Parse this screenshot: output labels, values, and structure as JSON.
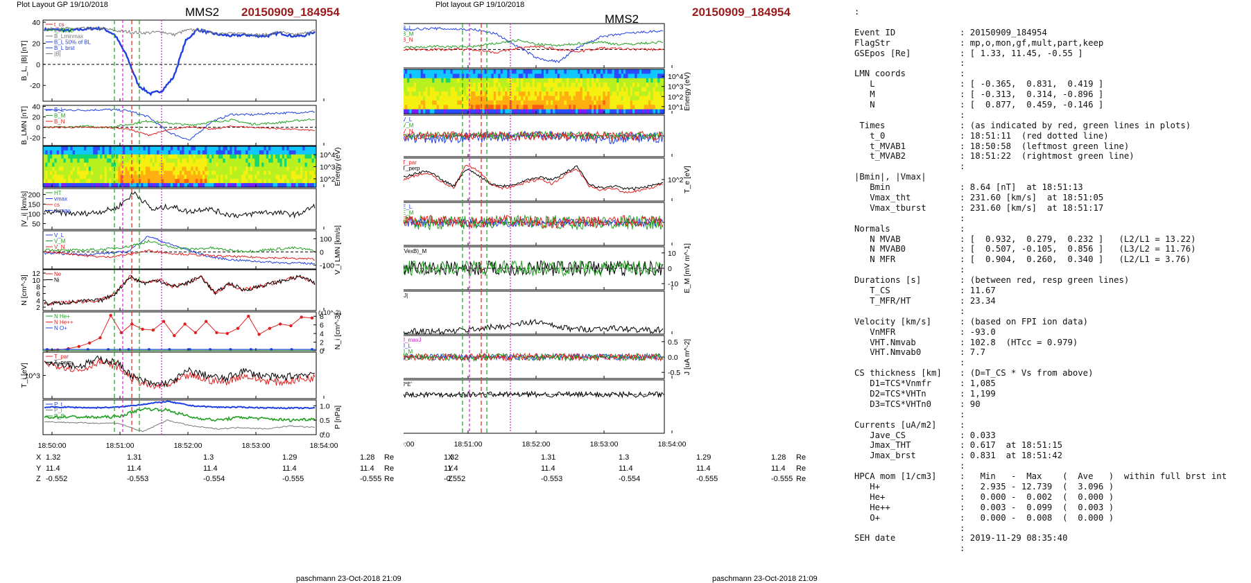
{
  "header": {
    "left_plot_layout": "Plot Layout GP 19/10/2018",
    "middle_plot_layout": "Plot layout GP 19/10/2018",
    "spacecraft": "MMS2",
    "event_id": "20150909_184954"
  },
  "footer": {
    "credit": "paschmann 23-Oct-2018 21:09"
  },
  "time_axis": {
    "ticks": [
      "18:50:00",
      "18:51:00",
      "18:52:00",
      "18:53:00",
      "18:54:00"
    ]
  },
  "coords": {
    "rows": [
      {
        "label": "X",
        "values": [
          "1.32",
          "1.31",
          "1.3",
          "1.29",
          "1.28"
        ],
        "unit": "Re"
      },
      {
        "label": "Y",
        "values": [
          "11.4",
          "11.4",
          "11.4",
          "11.4",
          "11.4"
        ],
        "unit": "Re"
      },
      {
        "label": "Z",
        "values": [
          "-0.552",
          "-0.553",
          "-0.554",
          "-0.555",
          "-0.555"
        ],
        "unit": "Re"
      }
    ]
  },
  "colors": {
    "red_line": "#e02020",
    "green_line": "#20a020",
    "magenta_line": "#d020d0",
    "blue": "#1f3fe0",
    "black": "#000000",
    "event_red": "#9b1b1b"
  },
  "chart_data": [
    {
      "type": "line",
      "panel": "left-1",
      "ylabel": "B_L, |B| [nT]",
      "ylim": [
        -35,
        42
      ],
      "yticks": [
        "40",
        "20",
        "0",
        "-20"
      ],
      "legend": [
        "t_cs",
        "t_MVAB",
        "B_Lminmax",
        "B_L 50% of BL",
        "B_L brst",
        "|B|"
      ],
      "series": [
        {
          "name": "B_L brst",
          "values": [
            33,
            33,
            32,
            33,
            34,
            34,
            28,
            8,
            -20,
            -28,
            -25,
            -12,
            22,
            33,
            30,
            28,
            27,
            28,
            27,
            27,
            30,
            27,
            27,
            31
          ]
        },
        {
          "name": "|B|",
          "values": [
            34,
            33,
            34,
            34,
            34,
            34,
            32,
            31,
            30,
            30,
            31,
            28,
            32,
            33,
            31,
            29,
            29,
            30,
            28,
            28,
            31,
            28,
            29,
            32
          ]
        }
      ]
    },
    {
      "type": "line",
      "panel": "left-2",
      "ylabel": "B_LMN [nT]",
      "ylim": [
        -35,
        42
      ],
      "yticks": [
        "40",
        "20",
        "0",
        "-20"
      ],
      "legend": [
        "B_L",
        "B_M",
        "B_N"
      ]
    },
    {
      "type": "heatmap",
      "panel": "left-3",
      "ylabel": "Energy (eV)",
      "yticks": [
        "10^4",
        "10^3",
        "10^2"
      ]
    },
    {
      "type": "line",
      "panel": "left-4",
      "ylabel": "|V_i| [km/s]",
      "ylim": [
        20,
        230
      ],
      "yticks": [
        "200",
        "150",
        "100",
        "50"
      ],
      "legend": [
        "HT",
        "vmax",
        "cs",
        "dvmax"
      ]
    },
    {
      "type": "line",
      "panel": "left-5",
      "ylabel": "V_i LMN [km/s]",
      "ylim": [
        -130,
        160
      ],
      "yticks": [
        "100",
        "0",
        "-100"
      ],
      "legend": [
        "V_L",
        "V_M",
        "V_N"
      ]
    },
    {
      "type": "line",
      "panel": "left-6",
      "ylabel": "N [cm^-3]",
      "ylim": [
        1,
        13
      ],
      "yticks": [
        "12",
        "10",
        "8",
        "6",
        "4",
        "2"
      ],
      "legend": [
        "Ne",
        "Ni"
      ]
    },
    {
      "type": "line",
      "panel": "left-7",
      "ylabel": "N_i [cm^-3]",
      "ylim": [
        0,
        9
      ],
      "yticks": [
        "8",
        "6",
        "4",
        "2",
        "0"
      ],
      "scale_note": "(x10^-2)",
      "legend": [
        "N He+",
        "N He++",
        "N O+"
      ],
      "series": [
        {
          "name": "N He++",
          "values": [
            0.1,
            0.2,
            0.5,
            1.0,
            1.8,
            3.0,
            8.2,
            4.2,
            6.2,
            5.0,
            4.8,
            6.8,
            3.5,
            6.2,
            4.2,
            6.8,
            4.2,
            4.0,
            5.2,
            8.0,
            3.8,
            5.2,
            6.2,
            5.8,
            7.8,
            7.6
          ]
        }
      ]
    },
    {
      "type": "line",
      "panel": "left-8",
      "ylabel": "T_i [eV]",
      "yticks": [
        "10^3"
      ],
      "legend": [
        "T_par",
        "T_perp"
      ]
    },
    {
      "type": "line",
      "panel": "left-9",
      "ylabel": "P [nPa]",
      "ylim": [
        0,
        1.2
      ],
      "yticks": [
        "1.0",
        "0.5",
        "0.0"
      ],
      "legend": [
        "P_t",
        "P_i",
        "P_B"
      ]
    },
    {
      "type": "line",
      "panel": "mid-1",
      "ylabel": "B_LMN [nT]",
      "ylim": [
        -30,
        42
      ],
      "yticks": [
        "40",
        "20",
        "0",
        "-20"
      ],
      "legend": [
        "B_L",
        "B_M",
        "B_N"
      ]
    },
    {
      "type": "heatmap",
      "panel": "mid-2",
      "ylabel": "Energy (eV)",
      "yticks": [
        "10^4",
        "10^3",
        "10^2",
        "10^1"
      ]
    },
    {
      "type": "line",
      "panel": "mid-3",
      "ylabel": "V_e LMN [km/s]",
      "ylim": [
        -700,
        700
      ],
      "yticks": [
        "500",
        "0",
        "-500"
      ],
      "legend": [
        "V_L",
        "V_M",
        "V_N"
      ]
    },
    {
      "type": "line",
      "panel": "mid-4",
      "ylabel": "T_e [eV]",
      "yticks": [
        "10^2"
      ],
      "legend": [
        "T_par",
        "T_perp"
      ]
    },
    {
      "type": "line",
      "panel": "mid-5",
      "ylabel": "E_LMN [mV m^-1]",
      "ylim": [
        -16,
        14
      ],
      "yticks": [
        "10",
        "0",
        "-10"
      ],
      "legend": [
        "E_L",
        "E_M",
        "E_N"
      ]
    },
    {
      "type": "line",
      "panel": "mid-6",
      "ylabel": "E_M [mV m^-1]",
      "ylim": [
        -14,
        14
      ],
      "yticks": [
        "10",
        "0",
        "-10"
      ],
      "legend": [
        "(VexB)_M"
      ]
    },
    {
      "type": "line",
      "panel": "mid-7",
      "ylabel": "|J| [uA m^-2]",
      "ylim": [
        0,
        0.85
      ],
      "yticks": [
        "0.8",
        "0.6",
        "0.4",
        "0.2"
      ],
      "legend": [
        "|J|"
      ]
    },
    {
      "type": "line",
      "panel": "mid-8",
      "ylabel": "J [uA m^-2]",
      "ylim": [
        -0.7,
        0.7
      ],
      "yticks": [
        "0.5",
        "0.0",
        "-0.5"
      ],
      "legend": [
        "J_maxJ",
        "J_L",
        "J_M",
        "J_N"
      ]
    },
    {
      "type": "line",
      "panel": "mid-9",
      "ylabel": "J*E' [nW m^-3]",
      "ylim": [
        -1.6,
        0.6
      ],
      "yticks": [
        "0.5",
        "0.0",
        "-0.5",
        "-1.0",
        "-1.5"
      ],
      "legend": [
        "J*E'"
      ]
    }
  ],
  "info": {
    "rows": [
      [
        ":",
        ""
      ],
      [
        "",
        ""
      ],
      [
        "Event ID",
        ": 20150909_184954"
      ],
      [
        "FlagStr",
        ": mp,o,mon,gf,mult,part,keep"
      ],
      [
        "GSEpos [Re]",
        ": [ 1.33, 11.45, -0.55 ]"
      ],
      [
        "",
        ":"
      ],
      [
        "LMN coords",
        ":"
      ],
      [
        "   L",
        ": [ -0.365,  0.831,  0.419 ]"
      ],
      [
        "   M",
        ": [ -0.313,  0.314, -0.896 ]"
      ],
      [
        "   N",
        ": [  0.877,  0.459, -0.146 ]"
      ],
      [
        "",
        ":"
      ],
      [
        " Times",
        ": (as indicated by red, green lines in plots)"
      ],
      [
        "   t_0",
        ": 18:51:11  (red dotted line)"
      ],
      [
        "   t_MVAB1",
        ": 18:50:58  (leftmost green line)"
      ],
      [
        "   t_MVAB2",
        ": 18:51:22  (rightmost green line)"
      ],
      [
        "",
        ":"
      ],
      [
        "|Bmin|, |Vmax|",
        ""
      ],
      [
        "   Bmin",
        ": 8.64 [nT]  at 18:51:13"
      ],
      [
        "   Vmax_tht",
        ": 231.60 [km/s]  at 18:51:05"
      ],
      [
        "   Vmax_tburst",
        ": 231.60 [km/s]  at 18:51:17"
      ],
      [
        "",
        ":"
      ],
      [
        "Normals",
        ":"
      ],
      [
        "   N MVAB",
        ": [  0.932,  0.279,  0.232 ]   (L2/L1 = 13.22)"
      ],
      [
        "   N MVAB0",
        ": [  0.507, -0.105,  0.856 ]   (L3/L2 = 11.76)"
      ],
      [
        "   N MFR",
        ": [  0.904,  0.260,  0.340 ]   (L2/L1 = 3.76)"
      ],
      [
        "",
        ":"
      ],
      [
        "Durations [s]",
        ": (between red, resp green lines)"
      ],
      [
        "   T_CS",
        ": 11.67"
      ],
      [
        "   T_MFR/HT",
        ": 23.34"
      ],
      [
        "",
        ":"
      ],
      [
        "Velocity [km/s]",
        ": (based on FPI ion data)"
      ],
      [
        "   VnMFR",
        ": -93.0"
      ],
      [
        "   VHT.Nmvab",
        ": 102.8  (HTcc = 0.979)"
      ],
      [
        "   VHT.Nmvab0",
        ": 7.7"
      ],
      [
        "",
        ":"
      ],
      [
        "CS thickness [km]",
        ": (D=T_CS * Vs from above)"
      ],
      [
        "   D1=TCS*Vnmfr",
        ": 1,085"
      ],
      [
        "   D2=TCS*VHTn",
        ": 1,199"
      ],
      [
        "   D3=TCS*VHTn0",
        ": 90"
      ],
      [
        "",
        ":"
      ],
      [
        "Currents [uA/m2]",
        ":"
      ],
      [
        "   Jave_CS",
        ": 0.033"
      ],
      [
        "   Jmax_THT",
        ": 0.617  at 18:51:15"
      ],
      [
        "   Jmax_brst",
        ": 0.831  at 18:51:42"
      ],
      [
        "",
        ":"
      ],
      [
        "HPCA mom [1/cm3]",
        ":   Min   -  Max    (  Ave   )  within full brst int"
      ],
      [
        "   H+",
        ":   2.935 - 12.739  (  3.096 )"
      ],
      [
        "   He+",
        ":   0.000 -  0.002  (  0.000 )"
      ],
      [
        "   He++",
        ":   0.003 -  0.099  (  0.003 )"
      ],
      [
        "   O+",
        ":   0.000 -  0.008  (  0.000 )"
      ],
      [
        "",
        ":"
      ],
      [
        "SEH date",
        ": 2019-11-29 08:35:40"
      ],
      [
        "",
        ":"
      ]
    ]
  }
}
